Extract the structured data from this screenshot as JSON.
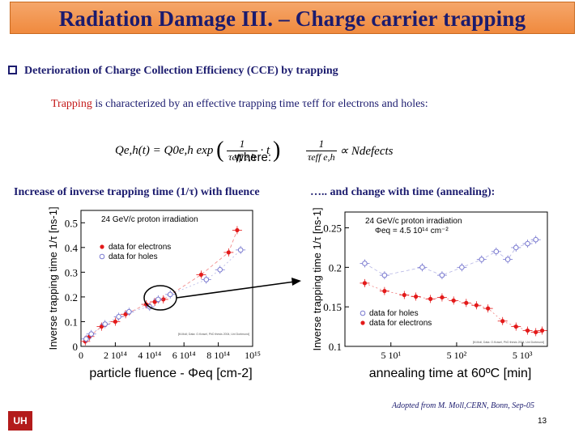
{
  "slide": {
    "title": "Radiation Damage III. – Charge carrier trapping",
    "bullet": "Deterioration of Charge Collection Efficiency (CCE) by trapping",
    "trap_word": "Trapping",
    "trap_rest": " is characterized by an effective trapping time τeff for electrons and holes:",
    "formula_left": "Qe,h(t) = Q0e,h exp(−1/τeff e,h · t)",
    "where": "where:",
    "formula_right": "1/τeff e,h ∝ Ndefects",
    "caption_left": "Increase of inverse trapping time (1/τ) with fluence",
    "caption_right": "….. and change with time (annealing):",
    "credit": "Adopted from M. Moll,CERN, Bonn, Sep-05",
    "page": "13",
    "logo": "UH"
  },
  "formula_parts": {
    "lhs": "Qe,h(t) = Q0e,h exp",
    "num": "1",
    "den": "τeff e,h",
    "t": "· t",
    "r_num": "1",
    "r_den": "τeff e,h",
    "r_rhs": "∝ Ndefects"
  },
  "chart_data": [
    {
      "type": "scatter",
      "annotation": "24 GeV/c proton irradiation",
      "xlabel": "particle fluence - Φeq [cm-2]",
      "ylabel": "Inverse trapping time 1/τ [ns-1]",
      "x_ticks": [
        "0",
        "2 10¹⁴",
        "4 10¹⁴",
        "6 10¹⁴",
        "8 10¹⁴",
        "10¹⁵"
      ],
      "x_tick_values": [
        0,
        200000000000000.0,
        400000000000000.0,
        600000000000000.0,
        800000000000000.0,
        1000000000000000.0
      ],
      "y_ticks": [
        "0",
        "0.1",
        "0.2",
        "0.3",
        "0.4",
        "0.5"
      ],
      "y_tick_values": [
        0,
        0.1,
        0.2,
        0.3,
        0.4,
        0.5
      ],
      "xlim": [
        0,
        1000000000000000.0
      ],
      "ylim": [
        0,
        0.55
      ],
      "series": [
        {
          "name": "data for electrons",
          "color": "#e31a1a",
          "marker": "filled",
          "points": [
            [
              25000000000000.0,
              0.02
            ],
            [
              50000000000000.0,
              0.04
            ],
            [
              120000000000000.0,
              0.08
            ],
            [
              200000000000000.0,
              0.1
            ],
            [
              260000000000000.0,
              0.13
            ],
            [
              380000000000000.0,
              0.17
            ],
            [
              430000000000000.0,
              0.18
            ],
            [
              480000000000000.0,
              0.19
            ],
            [
              700000000000000.0,
              0.29
            ],
            [
              860000000000000.0,
              0.38
            ],
            [
              910000000000000.0,
              0.47
            ]
          ]
        },
        {
          "name": "data for holes",
          "color": "#7a7ad0",
          "marker": "open",
          "points": [
            [
              30000000000000.0,
              0.03
            ],
            [
              60000000000000.0,
              0.05
            ],
            [
              140000000000000.0,
              0.09
            ],
            [
              220000000000000.0,
              0.12
            ],
            [
              280000000000000.0,
              0.14
            ],
            [
              400000000000000.0,
              0.16
            ],
            [
              450000000000000.0,
              0.19
            ],
            [
              520000000000000.0,
              0.21
            ],
            [
              730000000000000.0,
              0.27
            ],
            [
              810000000000000.0,
              0.31
            ],
            [
              930000000000000.0,
              0.39
            ]
          ]
        }
      ],
      "footnote": "[M.Moll; Data: O.Krasel, PhD thesis 2004, Uni Dortmund]"
    },
    {
      "type": "scatter",
      "annotation": "24 GeV/c proton irradiation",
      "annotation2": "Φeq = 4.5 10¹⁴ cm⁻²",
      "xlabel": "annealing time at 60ºC [min]",
      "ylabel": "Inverse trapping time 1/τ [ns-1]",
      "x_scale": "log",
      "x_ticks": [
        "5 10¹",
        "5 10²",
        "5 10³"
      ],
      "x_tick_values": [
        50,
        500,
        5000
      ],
      "y_ticks": [
        "0.1",
        "0.15",
        "0.2",
        "0.25"
      ],
      "y_tick_values": [
        0.1,
        0.15,
        0.2,
        0.25
      ],
      "xlim": [
        10,
        12000
      ],
      "ylim": [
        0.1,
        0.27
      ],
      "series": [
        {
          "name": "data for holes",
          "color": "#7a7ad0",
          "marker": "open",
          "points": [
            [
              20,
              0.205
            ],
            [
              40,
              0.19
            ],
            [
              150,
              0.2
            ],
            [
              300,
              0.19
            ],
            [
              600,
              0.2
            ],
            [
              1200,
              0.21
            ],
            [
              2000,
              0.22
            ],
            [
              3000,
              0.21
            ],
            [
              4000,
              0.225
            ],
            [
              6000,
              0.23
            ],
            [
              8000,
              0.235
            ]
          ]
        },
        {
          "name": "data for electrons",
          "color": "#e31a1a",
          "marker": "filled",
          "points": [
            [
              20,
              0.18
            ],
            [
              40,
              0.17
            ],
            [
              80,
              0.165
            ],
            [
              120,
              0.163
            ],
            [
              200,
              0.16
            ],
            [
              300,
              0.162
            ],
            [
              450,
              0.158
            ],
            [
              700,
              0.155
            ],
            [
              1000,
              0.152
            ],
            [
              1500,
              0.148
            ],
            [
              2500,
              0.132
            ],
            [
              4000,
              0.125
            ],
            [
              6000,
              0.12
            ],
            [
              8000,
              0.118
            ],
            [
              10000,
              0.12
            ]
          ]
        }
      ],
      "footnote": "[M.Moll, Data: O.Krasel, PhD thesis 2004, Uni Dortmund]"
    }
  ]
}
